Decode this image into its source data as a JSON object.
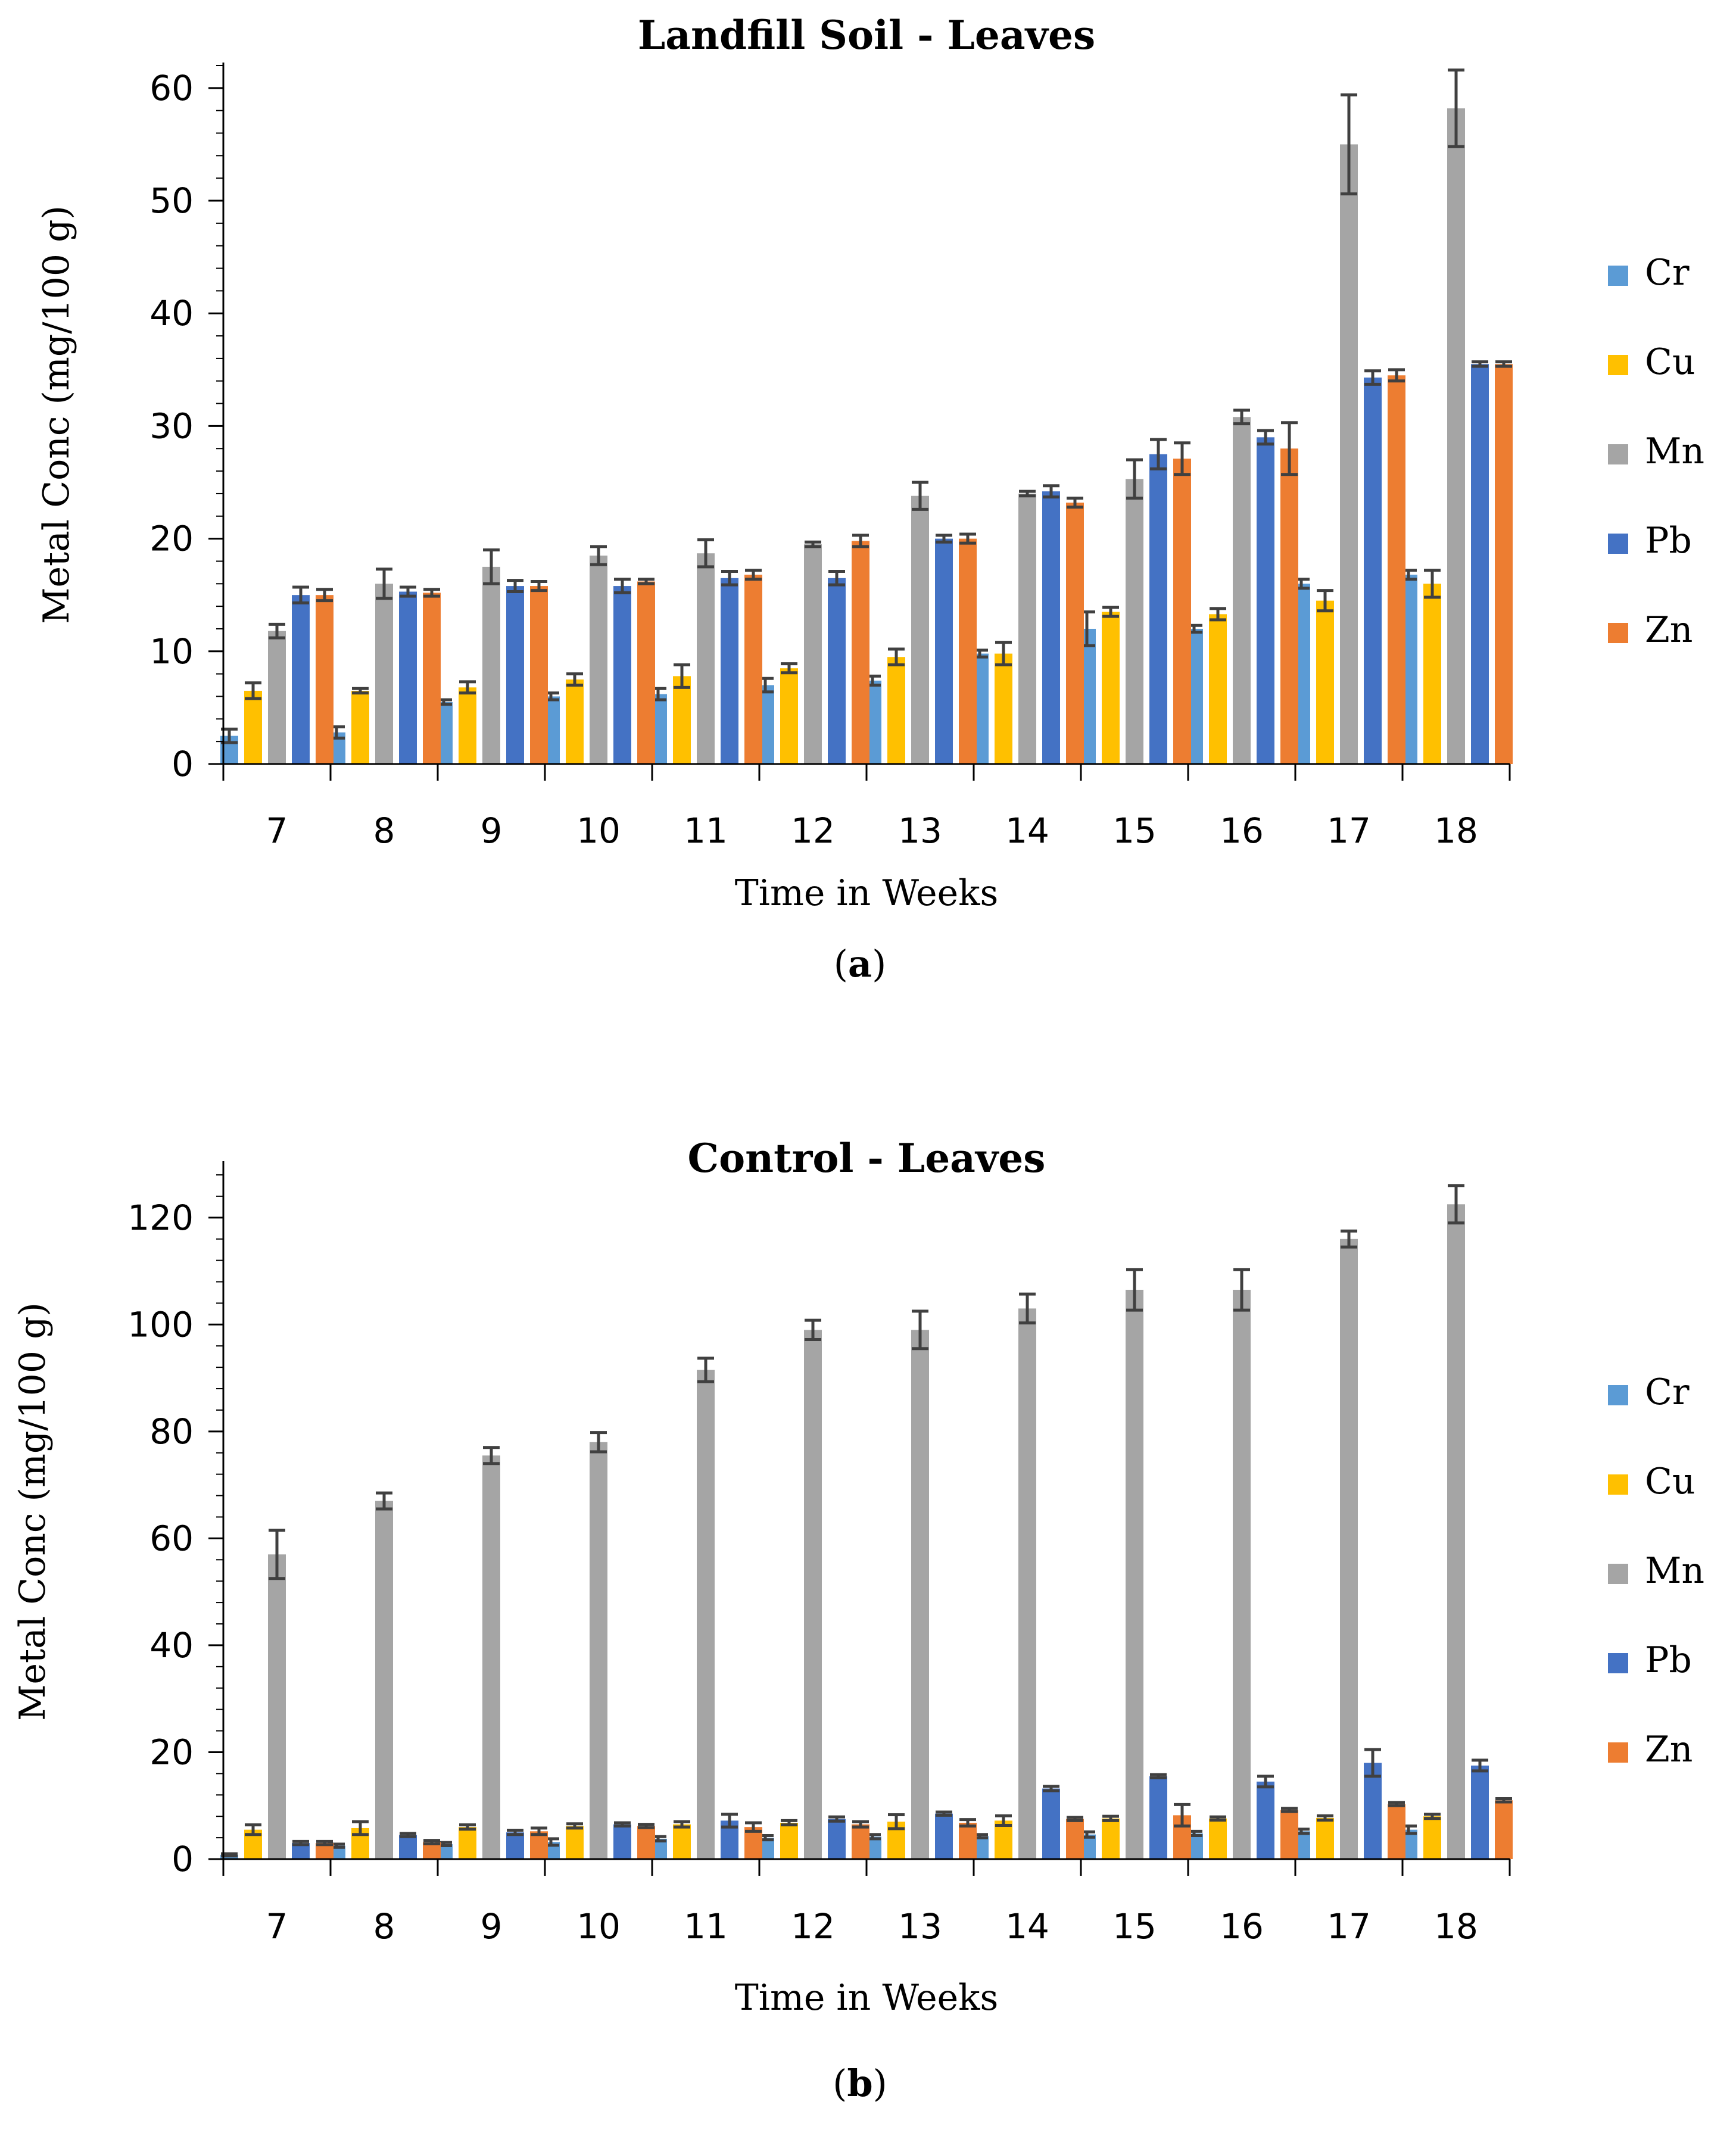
{
  "figure": {
    "captions": [
      {
        "open": "(",
        "letter": "a",
        "close": ")"
      },
      {
        "open": "(",
        "letter": "b",
        "close": ")"
      }
    ]
  },
  "colors": {
    "Cr": "#5b9bd5",
    "Cu": "#ffc000",
    "Mn": "#a5a5a5",
    "Pb": "#4472c4",
    "Zn": "#ed7d31",
    "errorbar": "#404040",
    "axis": "#000000"
  },
  "chart_data": [
    {
      "type": "bar",
      "title": "Landfill Soil - Leaves",
      "xlabel": "Time in Weeks",
      "ylabel": "Metal Conc (mg/100 g)",
      "ylim": [
        0,
        62
      ],
      "yticks": [
        0,
        10,
        20,
        30,
        40,
        50,
        60
      ],
      "categories": [
        "7",
        "8",
        "9",
        "10",
        "11",
        "12",
        "13",
        "14",
        "15",
        "16",
        "17",
        "18"
      ],
      "legend_position": "right",
      "series": [
        {
          "name": "Cr",
          "values": [
            2.5,
            2.8,
            5.5,
            6,
            6.2,
            7,
            7.4,
            9.8,
            12,
            12,
            16,
            16.8
          ],
          "errors": [
            0.6,
            0.5,
            0.2,
            0.3,
            0.5,
            0.6,
            0.4,
            0.3,
            1.5,
            0.3,
            0.4,
            0.4
          ]
        },
        {
          "name": "Cu",
          "values": [
            6.5,
            6.5,
            6.8,
            7.5,
            7.8,
            8.5,
            9.5,
            9.8,
            13.5,
            13.3,
            14.5,
            16
          ],
          "errors": [
            0.7,
            0.2,
            0.5,
            0.5,
            1,
            0.4,
            0.7,
            1,
            0.4,
            0.5,
            0.9,
            1.2
          ]
        },
        {
          "name": "Mn",
          "values": [
            11.8,
            16,
            17.5,
            18.5,
            18.7,
            19.5,
            23.8,
            24,
            25.3,
            30.8,
            55,
            58.2
          ],
          "errors": [
            0.6,
            1.3,
            1.5,
            0.8,
            1.2,
            0.2,
            1.2,
            0.2,
            1.7,
            0.6,
            4.4,
            3.4
          ]
        },
        {
          "name": "Pb",
          "values": [
            15,
            15.3,
            15.8,
            15.8,
            16.5,
            16.5,
            20,
            24.2,
            27.5,
            29,
            34.3,
            35.5
          ],
          "errors": [
            0.7,
            0.4,
            0.5,
            0.6,
            0.6,
            0.6,
            0.3,
            0.5,
            1.3,
            0.6,
            0.6,
            0.2
          ]
        },
        {
          "name": "Zn",
          "values": [
            15,
            15.2,
            15.8,
            16.2,
            16.8,
            19.8,
            20,
            23.2,
            27.1,
            28,
            34.5,
            35.5
          ],
          "errors": [
            0.5,
            0.3,
            0.4,
            0.2,
            0.4,
            0.5,
            0.4,
            0.4,
            1.4,
            2.3,
            0.5,
            0.2
          ]
        }
      ]
    },
    {
      "type": "bar",
      "title": "Control - Leaves",
      "xlabel": "Time in Weeks",
      "ylabel": "Metal Conc (mg/100 g)",
      "ylim": [
        0,
        130
      ],
      "yticks": [
        0,
        20,
        40,
        60,
        80,
        100,
        120
      ],
      "categories": [
        "7",
        "8",
        "9",
        "10",
        "11",
        "12",
        "13",
        "14",
        "15",
        "16",
        "17",
        "18"
      ],
      "legend_position": "right",
      "series": [
        {
          "name": "Cr",
          "values": [
            0.8,
            2.5,
            2.8,
            3.2,
            3.8,
            4,
            4.2,
            4.3,
            4.6,
            4.8,
            5.2,
            5.5
          ],
          "errors": [
            0.2,
            0.3,
            0.3,
            0.6,
            0.4,
            0.4,
            0.4,
            0.3,
            0.5,
            0.4,
            0.4,
            0.7
          ]
        },
        {
          "name": "Cu",
          "values": [
            5.5,
            5.8,
            6,
            6.2,
            6.5,
            6.8,
            7,
            7.2,
            7.6,
            7.6,
            7.7,
            8
          ],
          "errors": [
            0.9,
            1.2,
            0.4,
            0.4,
            0.5,
            0.4,
            1.3,
            0.9,
            0.4,
            0.3,
            0.4,
            0.4
          ]
        },
        {
          "name": "Mn",
          "values": [
            57,
            67,
            75.5,
            78,
            91.5,
            99,
            99,
            103,
            106.5,
            106.5,
            116,
            122.5
          ],
          "errors": [
            4.5,
            1.5,
            1.5,
            1.8,
            2.2,
            1.8,
            3.5,
            2.7,
            3.8,
            3.8,
            1.5,
            3.5
          ]
        },
        {
          "name": "Pb",
          "values": [
            3,
            4.5,
            5,
            6.5,
            7.2,
            7.5,
            8.5,
            13.2,
            15.5,
            14.5,
            18,
            17.5
          ],
          "errors": [
            0.3,
            0.3,
            0.4,
            0.3,
            1.2,
            0.4,
            0.3,
            0.4,
            0.3,
            1,
            2.5,
            1
          ]
        },
        {
          "name": "Zn",
          "values": [
            3,
            3.2,
            5.2,
            6.2,
            6,
            6.5,
            6.8,
            7.5,
            8.2,
            9.2,
            10.3,
            11
          ],
          "errors": [
            0.3,
            0.3,
            0.6,
            0.3,
            0.8,
            0.5,
            0.6,
            0.3,
            2,
            0.3,
            0.3,
            0.3
          ]
        }
      ]
    }
  ]
}
